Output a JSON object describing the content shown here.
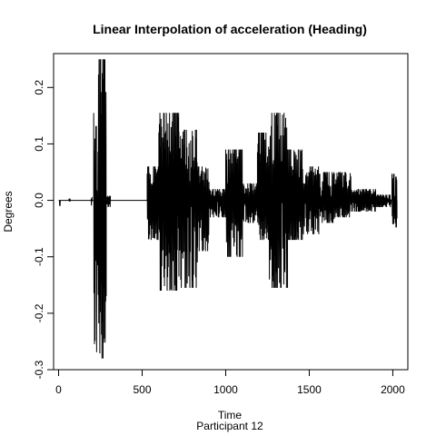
{
  "chart_data": {
    "type": "line",
    "title": "Linear Interpolation of acceleration (Heading)",
    "xlabel": "Time",
    "sublabel": "Participant  12",
    "ylabel": "Degrees",
    "xlim": [
      -30,
      2090
    ],
    "ylim": [
      -0.3,
      0.26
    ],
    "xticks": [
      0,
      500,
      1000,
      1500,
      2000
    ],
    "xtick_labels": [
      "0",
      "500",
      "1000",
      "1500",
      "2000"
    ],
    "yticks": [
      -0.3,
      -0.2,
      -0.1,
      0.0,
      0.1,
      0.2
    ],
    "ytick_labels": [
      "-0.3",
      "-0.2",
      "-0.1",
      "0.0",
      "0.1",
      "0.2"
    ],
    "color": "#000000",
    "bursts": [
      {
        "start": 5,
        "end": 10,
        "max": 0.0,
        "min": -0.01
      },
      {
        "start": 60,
        "end": 70,
        "max": 0.004,
        "min": -0.002
      },
      {
        "start": 195,
        "end": 200,
        "max": 0.006,
        "min": -0.01
      },
      {
        "start": 210,
        "end": 285,
        "max": 0.25,
        "min": -0.28
      },
      {
        "start": 285,
        "end": 310,
        "max": 0.008,
        "min": -0.012
      },
      {
        "start": 530,
        "end": 600,
        "max": 0.06,
        "min": -0.07
      },
      {
        "start": 600,
        "end": 720,
        "max": 0.155,
        "min": -0.16
      },
      {
        "start": 720,
        "end": 830,
        "max": 0.125,
        "min": -0.155
      },
      {
        "start": 830,
        "end": 900,
        "max": 0.06,
        "min": -0.09
      },
      {
        "start": 900,
        "end": 1000,
        "max": 0.02,
        "min": -0.03
      },
      {
        "start": 1000,
        "end": 1100,
        "max": 0.09,
        "min": -0.1
      },
      {
        "start": 1100,
        "end": 1190,
        "max": 0.03,
        "min": -0.04
      },
      {
        "start": 1190,
        "end": 1260,
        "max": 0.12,
        "min": -0.07
      },
      {
        "start": 1260,
        "end": 1370,
        "max": 0.155,
        "min": -0.155
      },
      {
        "start": 1370,
        "end": 1460,
        "max": 0.09,
        "min": -0.07
      },
      {
        "start": 1460,
        "end": 1560,
        "max": 0.06,
        "min": -0.06
      },
      {
        "start": 1560,
        "end": 1650,
        "max": 0.05,
        "min": -0.04
      },
      {
        "start": 1650,
        "end": 1750,
        "max": 0.05,
        "min": -0.03
      },
      {
        "start": 1750,
        "end": 1900,
        "max": 0.02,
        "min": -0.02
      },
      {
        "start": 1900,
        "end": 1990,
        "max": 0.01,
        "min": -0.012
      },
      {
        "start": 1995,
        "end": 2025,
        "max": 0.047,
        "min": -0.048
      }
    ]
  }
}
